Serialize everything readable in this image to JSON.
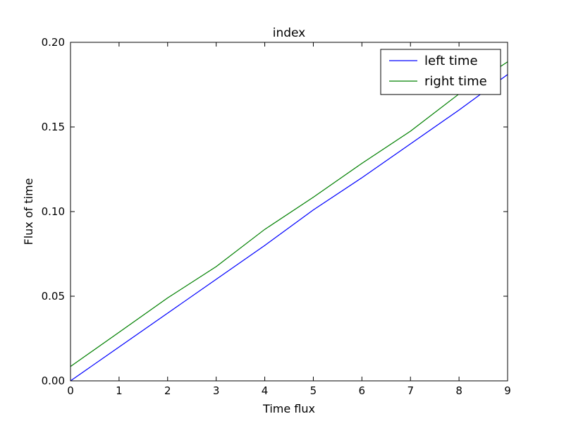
{
  "chart_data": {
    "type": "line",
    "title": "index",
    "xlabel": "Time flux",
    "ylabel": "Flux of time",
    "xlim": [
      0,
      9
    ],
    "ylim": [
      0,
      0.2
    ],
    "x_ticks": [
      0,
      1,
      2,
      3,
      4,
      5,
      6,
      7,
      8,
      9
    ],
    "x_tick_labels": [
      "0",
      "1",
      "2",
      "3",
      "4",
      "5",
      "6",
      "7",
      "8",
      "9"
    ],
    "y_ticks": [
      0,
      0.05,
      0.1,
      0.15,
      0.2
    ],
    "y_tick_labels": [
      "0.00",
      "0.05",
      "0.10",
      "0.15",
      "0.20"
    ],
    "grid": false,
    "legend_position": "top-right",
    "x": [
      0,
      1,
      2,
      3,
      4,
      5,
      6,
      7,
      8,
      9
    ],
    "series": [
      {
        "name": "left time",
        "color": "#0000ff",
        "values": [
          0.0,
          0.02,
          0.04,
          0.06,
          0.08,
          0.101,
          0.12,
          0.14,
          0.16,
          0.181
        ]
      },
      {
        "name": "right time",
        "color": "#008000",
        "values": [
          0.0085,
          0.0287,
          0.049,
          0.0675,
          0.0895,
          0.1085,
          0.1285,
          0.1475,
          0.1695,
          0.1885
        ]
      }
    ]
  }
}
